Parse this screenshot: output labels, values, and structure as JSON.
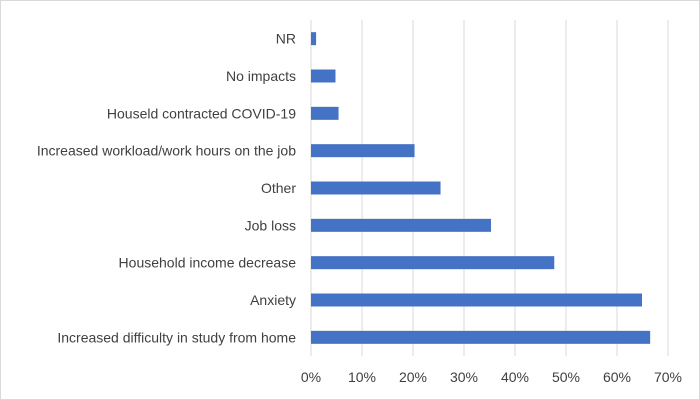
{
  "chart_data": {
    "type": "bar",
    "orientation": "horizontal",
    "title": "",
    "xlabel": "",
    "ylabel": "",
    "categories": [
      "NR",
      "No impacts",
      "Houseld contracted COVID-19",
      "Increased workload/work hours on the job",
      "Other",
      "Job loss",
      "Household income decrease",
      "Anxiety",
      "Increased difficulty in study from home"
    ],
    "values": [
      1.0,
      4.8,
      5.4,
      20.3,
      25.4,
      35.3,
      47.7,
      64.9,
      66.5
    ],
    "unit": "%",
    "xlim": [
      0,
      70
    ],
    "x_ticks": [
      "0%",
      "10%",
      "20%",
      "30%",
      "40%",
      "50%",
      "60%",
      "70%"
    ],
    "grid": true,
    "legend": "none",
    "bar_color": "#4472C4",
    "grid_color": "#d9d9d9"
  }
}
